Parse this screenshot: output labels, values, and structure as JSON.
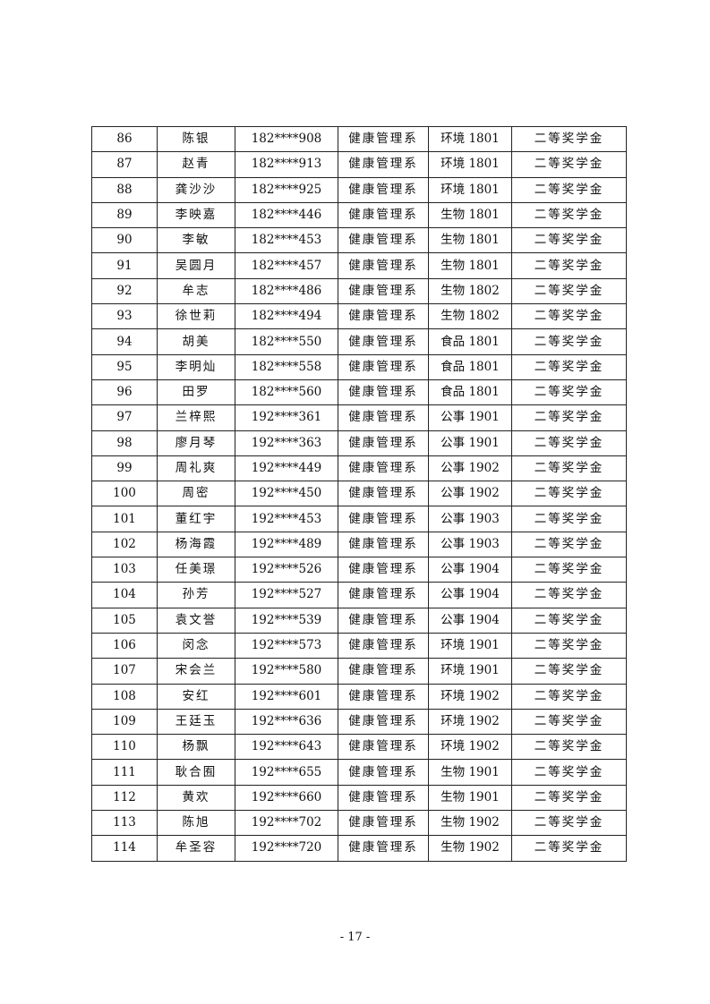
{
  "table": {
    "rows": [
      [
        "86",
        "陈银",
        "182****908",
        "健康管理系",
        "环境 1801",
        "二等奖学金"
      ],
      [
        "87",
        "赵青",
        "182****913",
        "健康管理系",
        "环境 1801",
        "二等奖学金"
      ],
      [
        "88",
        "龚沙沙",
        "182****925",
        "健康管理系",
        "环境 1801",
        "二等奖学金"
      ],
      [
        "89",
        "李映嘉",
        "182****446",
        "健康管理系",
        "生物 1801",
        "二等奖学金"
      ],
      [
        "90",
        "李敏",
        "182****453",
        "健康管理系",
        "生物 1801",
        "二等奖学金"
      ],
      [
        "91",
        "吴圆月",
        "182****457",
        "健康管理系",
        "生物 1801",
        "二等奖学金"
      ],
      [
        "92",
        "牟志",
        "182****486",
        "健康管理系",
        "生物 1802",
        "二等奖学金"
      ],
      [
        "93",
        "徐世莉",
        "182****494",
        "健康管理系",
        "生物 1802",
        "二等奖学金"
      ],
      [
        "94",
        "胡美",
        "182****550",
        "健康管理系",
        "食品 1801",
        "二等奖学金"
      ],
      [
        "95",
        "李明灿",
        "182****558",
        "健康管理系",
        "食品 1801",
        "二等奖学金"
      ],
      [
        "96",
        "田罗",
        "182****560",
        "健康管理系",
        "食品 1801",
        "二等奖学金"
      ],
      [
        "97",
        "兰梓熙",
        "192****361",
        "健康管理系",
        "公事 1901",
        "二等奖学金"
      ],
      [
        "98",
        "廖月琴",
        "192****363",
        "健康管理系",
        "公事 1901",
        "二等奖学金"
      ],
      [
        "99",
        "周礼爽",
        "192****449",
        "健康管理系",
        "公事 1902",
        "二等奖学金"
      ],
      [
        "100",
        "周密",
        "192****450",
        "健康管理系",
        "公事 1902",
        "二等奖学金"
      ],
      [
        "101",
        "董红宇",
        "192****453",
        "健康管理系",
        "公事 1903",
        "二等奖学金"
      ],
      [
        "102",
        "杨海霞",
        "192****489",
        "健康管理系",
        "公事 1903",
        "二等奖学金"
      ],
      [
        "103",
        "任美璟",
        "192****526",
        "健康管理系",
        "公事 1904",
        "二等奖学金"
      ],
      [
        "104",
        "孙芳",
        "192****527",
        "健康管理系",
        "公事 1904",
        "二等奖学金"
      ],
      [
        "105",
        "袁文誉",
        "192****539",
        "健康管理系",
        "公事 1904",
        "二等奖学金"
      ],
      [
        "106",
        "闵念",
        "192****573",
        "健康管理系",
        "环境 1901",
        "二等奖学金"
      ],
      [
        "107",
        "宋会兰",
        "192****580",
        "健康管理系",
        "环境 1901",
        "二等奖学金"
      ],
      [
        "108",
        "安红",
        "192****601",
        "健康管理系",
        "环境 1902",
        "二等奖学金"
      ],
      [
        "109",
        "王廷玉",
        "192****636",
        "健康管理系",
        "环境 1902",
        "二等奖学金"
      ],
      [
        "110",
        "杨飘",
        "192****643",
        "健康管理系",
        "环境 1902",
        "二等奖学金"
      ],
      [
        "111",
        "耿合囿",
        "192****655",
        "健康管理系",
        "生物 1901",
        "二等奖学金"
      ],
      [
        "112",
        "黄欢",
        "192****660",
        "健康管理系",
        "生物 1901",
        "二等奖学金"
      ],
      [
        "113",
        "陈旭",
        "192****702",
        "健康管理系",
        "生物 1902",
        "二等奖学金"
      ],
      [
        "114",
        "牟圣容",
        "192****720",
        "健康管理系",
        "生物 1902",
        "二等奖学金"
      ]
    ]
  },
  "footer": {
    "page_number": "- 17 -"
  }
}
